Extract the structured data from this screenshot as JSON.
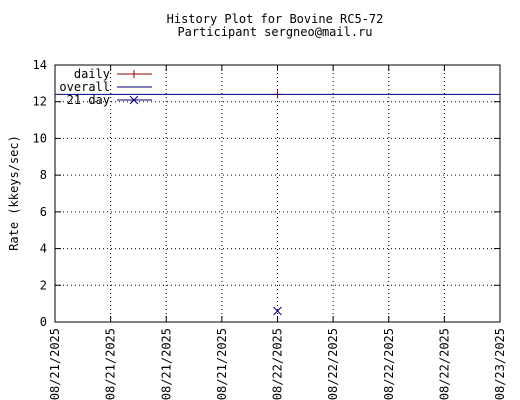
{
  "chart_data": {
    "type": "line",
    "title": "History Plot for Bovine RC5-72",
    "subtitle": "Participant sergneo@mail.ru",
    "xlabel": "",
    "ylabel": "Rate (kkeys/sec)",
    "ylim": [
      0,
      14
    ],
    "yticks": [
      0,
      2,
      4,
      6,
      8,
      10,
      12,
      14
    ],
    "xticks": [
      "08/21/2025",
      "08/21/2025",
      "08/21/2025",
      "08/21/2025",
      "08/22/2025",
      "08/22/2025",
      "08/22/2025",
      "08/22/2025",
      "08/23/2025"
    ],
    "grid": true,
    "legend_position": "top-left",
    "series": [
      {
        "name": "daily",
        "style": "point",
        "marker": "plus",
        "color": "#8b0000",
        "points": [
          {
            "x": "08/22/2025",
            "y": 12.4
          }
        ]
      },
      {
        "name": "overall",
        "style": "hline",
        "color": "#000080",
        "y": 12.4
      },
      {
        "name": "21 day",
        "style": "point",
        "marker": "cross",
        "color": "#000080",
        "points": [
          {
            "x": "08/22/2025",
            "y": 0.6
          }
        ]
      }
    ]
  }
}
